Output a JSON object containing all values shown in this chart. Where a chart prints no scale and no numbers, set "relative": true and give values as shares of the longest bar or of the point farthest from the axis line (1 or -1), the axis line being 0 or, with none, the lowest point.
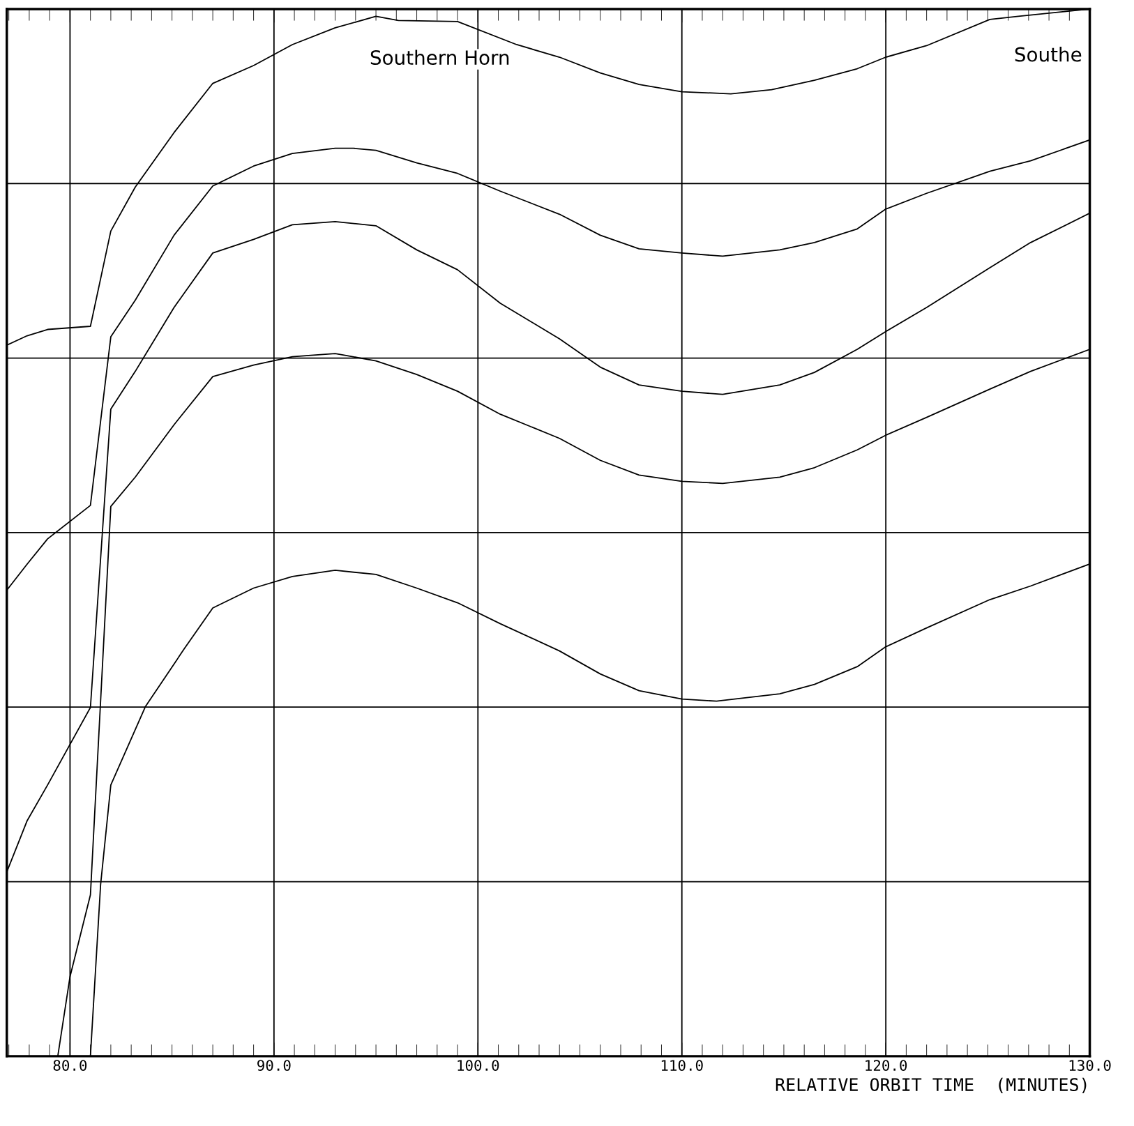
{
  "chart_data": {
    "type": "line",
    "relative": true,
    "xlabel": "RELATIVE ORBIT TIME  (MINUTES)",
    "xlim": [
      76.9,
      130
    ],
    "xticks": [
      {
        "value": 80,
        "label": "80.0"
      },
      {
        "value": 90,
        "label": "90.0"
      },
      {
        "value": 100,
        "label": "100.0"
      },
      {
        "value": 110,
        "label": "110.0"
      },
      {
        "value": 120,
        "label": "120.0"
      },
      {
        "value": 130,
        "label": "130.0"
      }
    ],
    "grid": true,
    "line_style": "solid",
    "annotations": [
      "Southern Horn",
      "Southe"
    ],
    "series": [
      {
        "color": "#000000",
        "x": [
          76.9,
          77.9,
          78.9,
          81.0,
          82.0,
          83.2,
          85.1,
          87.0,
          89.0,
          90.9,
          93.0,
          95.0,
          96.1,
          99.0,
          101.9,
          104.0,
          106.0,
          107.9,
          110.0,
          112.4,
          114.4,
          116.5,
          118.6,
          120.0,
          122.0,
          125.1,
          126.5,
          130.0
        ],
        "values": [
          0.679,
          0.688,
          0.694,
          0.697,
          0.788,
          0.83,
          0.882,
          0.929,
          0.946,
          0.966,
          0.982,
          0.993,
          0.989,
          0.988,
          0.966,
          0.954,
          0.939,
          0.928,
          0.921,
          0.919,
          0.923,
          0.932,
          0.943,
          0.954,
          0.965,
          0.99,
          0.993,
          1.0
        ]
      },
      {
        "color": "#000000",
        "x": [
          76.9,
          77.9,
          78.9,
          81.0,
          82.0,
          83.2,
          85.1,
          87.0,
          89.0,
          90.9,
          93.0,
          93.9,
          95.0,
          97.0,
          99.0,
          101.1,
          104.0,
          106.0,
          107.9,
          110.0,
          112.0,
          114.8,
          116.5,
          118.6,
          120.0,
          122.0,
          125.1,
          127.1,
          130.0
        ],
        "values": [
          0.445,
          0.47,
          0.494,
          0.526,
          0.687,
          0.722,
          0.784,
          0.831,
          0.85,
          0.862,
          0.867,
          0.867,
          0.865,
          0.853,
          0.843,
          0.826,
          0.804,
          0.784,
          0.771,
          0.767,
          0.764,
          0.77,
          0.777,
          0.79,
          0.809,
          0.824,
          0.845,
          0.855,
          0.875
        ]
      },
      {
        "color": "#000000",
        "x": [
          76.9,
          77.9,
          78.9,
          81.0,
          82.0,
          83.2,
          85.1,
          87.0,
          89.0,
          90.9,
          93.0,
          95.0,
          97.0,
          99.0,
          101.1,
          104.0,
          106.0,
          107.9,
          110.0,
          112.0,
          114.8,
          116.5,
          118.6,
          120.0,
          122.0,
          125.1,
          127.1,
          130.0
        ],
        "values": [
          0.176,
          0.225,
          0.259,
          0.333,
          0.618,
          0.654,
          0.715,
          0.767,
          0.78,
          0.794,
          0.797,
          0.793,
          0.77,
          0.751,
          0.719,
          0.685,
          0.658,
          0.641,
          0.635,
          0.632,
          0.641,
          0.653,
          0.675,
          0.692,
          0.715,
          0.753,
          0.777,
          0.805
        ]
      },
      {
        "color": "#000000",
        "x": [
          79.4,
          80.0,
          81.0,
          82.0,
          83.2,
          85.1,
          87.0,
          89.0,
          90.9,
          93.0,
          95.0,
          97.0,
          99.0,
          101.1,
          104.0,
          106.0,
          107.9,
          110.0,
          112.0,
          114.8,
          116.5,
          118.6,
          120.0,
          122.0,
          125.1,
          127.1,
          130.0
        ],
        "values": [
          0,
          0.076,
          0.154,
          0.525,
          0.553,
          0.603,
          0.649,
          0.66,
          0.668,
          0.671,
          0.664,
          0.651,
          0.635,
          0.613,
          0.59,
          0.569,
          0.555,
          0.549,
          0.547,
          0.553,
          0.562,
          0.579,
          0.593,
          0.61,
          0.637,
          0.654,
          0.675
        ]
      },
      {
        "color": "#000000",
        "x": [
          81.0,
          81.5,
          82.0,
          83.7,
          85.6,
          87.0,
          89.0,
          90.9,
          93.0,
          95.0,
          97.0,
          99.0,
          101.1,
          104.0,
          106.0,
          107.9,
          110.0,
          111.7,
          114.8,
          116.5,
          118.6,
          120.0,
          122.0,
          125.1,
          127.1,
          130.0
        ],
        "values": [
          0,
          0.164,
          0.259,
          0.334,
          0.389,
          0.428,
          0.447,
          0.458,
          0.464,
          0.46,
          0.447,
          0.433,
          0.413,
          0.387,
          0.365,
          0.349,
          0.341,
          0.339,
          0.346,
          0.355,
          0.372,
          0.391,
          0.409,
          0.436,
          0.449,
          0.47
        ]
      }
    ]
  }
}
